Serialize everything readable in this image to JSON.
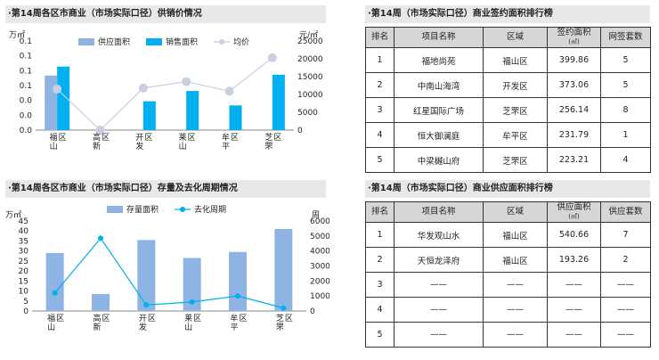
{
  "panel1": {
    "title": "·第14周各区市商业（市场实际口径）供销价情况",
    "left_unit": "万㎡",
    "right_unit": "元/㎡",
    "legend": [
      "供应面积",
      "销售面积",
      "均价"
    ]
  },
  "panel2": {
    "title": "·第14周各区市商业（市场实际口径）存量及去化周期情况",
    "left_unit": "万㎡",
    "right_unit": "周",
    "legend": [
      "存量面积",
      "去化周期"
    ]
  },
  "table1": {
    "title": "·第14周（市场实际口径）商业签约面积排行榜",
    "headers": [
      "排名",
      "项目名称",
      "区域",
      "签约面积",
      "(㎡)",
      "网签套数"
    ],
    "rows": [
      [
        "1",
        "福地尚苑",
        "福山区",
        "399.86",
        "5"
      ],
      [
        "2",
        "中南山海湾",
        "开发区",
        "373.06",
        "5"
      ],
      [
        "3",
        "红星国际广场",
        "芝罘区",
        "256.14",
        "8"
      ],
      [
        "4",
        "恒大御澜庭",
        "牟平区",
        "231.79",
        "1"
      ],
      [
        "5",
        "中梁樾山府",
        "芝罘区",
        "223.21",
        "4"
      ]
    ]
  },
  "table2": {
    "title": "·第14周（市场实际口径）商业供应面积排行榜",
    "headers": [
      "排名",
      "项目名称",
      "区域",
      "供应面积",
      "(㎡)",
      "供应套数"
    ],
    "rows": [
      [
        "1",
        "华发观山水",
        "福山区",
        "540.66",
        "7"
      ],
      [
        "2",
        "天恒龙泽府",
        "福山区",
        "193.26",
        "2"
      ],
      [
        "3",
        "——",
        "——",
        "——",
        "——"
      ],
      [
        "4",
        "——",
        "——",
        "——",
        "——"
      ],
      [
        "5",
        "——",
        "——",
        "——",
        "——"
      ]
    ]
  },
  "chart_data": [
    {
      "type": "bar",
      "categories": [
        "福山区",
        "高新区",
        "开发区",
        "莱山区",
        "牟平区",
        "芝罘区"
      ],
      "series": [
        {
          "name": "供应面积",
          "type": "bar",
          "axis": "left",
          "color": "#8db4e2",
          "values": [
            0.0734,
            0,
            0,
            0,
            0,
            0
          ]
        },
        {
          "name": "销售面积",
          "type": "bar",
          "axis": "left",
          "color": "#00b0f0",
          "values": [
            0.0855,
            0,
            0.0388,
            0.0527,
            0.0332,
            0.0746
          ]
        },
        {
          "name": "均价",
          "type": "line",
          "axis": "right",
          "color": "#c8cfe0",
          "values": [
            11500,
            0,
            11800,
            13600,
            10900,
            20300
          ]
        }
      ],
      "ylim": [
        0,
        0.12
      ],
      "yticks": [
        "0.0",
        "0.0",
        "0.0",
        "0.1",
        "0.1",
        "0.1",
        "0.1"
      ],
      "y2lim": [
        0,
        25000
      ],
      "y2ticks": [
        0,
        5000,
        10000,
        15000,
        20000,
        25000
      ],
      "legend_position": "top"
    },
    {
      "type": "bar",
      "categories": [
        "福山区",
        "高新区",
        "开发区",
        "莱山区",
        "牟平区",
        "芝罘区"
      ],
      "series": [
        {
          "name": "存量面积",
          "type": "bar",
          "axis": "left",
          "color": "#8db4e2",
          "values": [
            29,
            8.5,
            35.5,
            26.5,
            29.5,
            41
          ]
        },
        {
          "name": "去化周期",
          "type": "line",
          "axis": "right",
          "color": "#00b0f0",
          "values": [
            1200,
            4850,
            400,
            600,
            1000,
            200
          ]
        }
      ],
      "ylim": [
        0,
        45
      ],
      "yticks": [
        0,
        5,
        10,
        15,
        20,
        25,
        30,
        35,
        40,
        45
      ],
      "y2lim": [
        0,
        6000
      ],
      "y2ticks": [
        0,
        1000,
        2000,
        3000,
        4000,
        5000,
        6000
      ],
      "legend_position": "top"
    }
  ]
}
